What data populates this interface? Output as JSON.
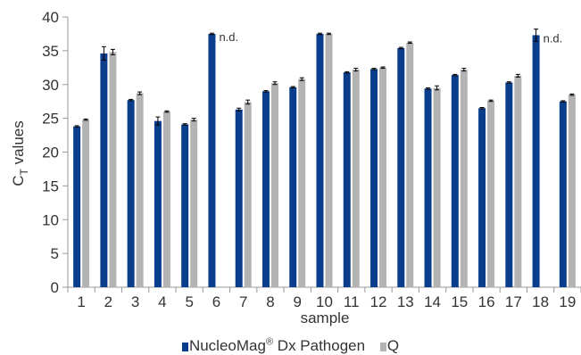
{
  "chart_data": {
    "type": "bar",
    "title": "",
    "xlabel": "sample",
    "ylabel": "C",
    "ylabel_subscript": "T",
    "ylabel_suffix": " values",
    "ylim": [
      0,
      40
    ],
    "yticks": [
      0,
      5,
      10,
      15,
      20,
      25,
      30,
      35,
      40
    ],
    "categories": [
      "1",
      "2",
      "3",
      "4",
      "5",
      "6",
      "7",
      "8",
      "9",
      "10",
      "11",
      "12",
      "13",
      "14",
      "15",
      "16",
      "17",
      "18",
      "19"
    ],
    "series": [
      {
        "name": "NucleoMag",
        "name_superscript": "®",
        "name_suffix": " Dx Pathogen",
        "color": "#0a3d8c",
        "values": [
          23.8,
          34.6,
          27.7,
          24.6,
          24.1,
          37.5,
          26.3,
          29.0,
          29.6,
          37.5,
          31.8,
          32.3,
          35.4,
          29.4,
          31.4,
          26.5,
          30.3,
          37.3,
          27.5
        ],
        "errors": [
          0.1,
          1.0,
          0.1,
          0.6,
          0.1,
          0.1,
          0.2,
          0.1,
          0.1,
          0.1,
          0.1,
          0.1,
          0.1,
          0.1,
          0.1,
          0.1,
          0.1,
          0.9,
          0.1
        ]
      },
      {
        "name": "Q",
        "color": "#b3b3b3",
        "values": [
          24.8,
          34.8,
          28.7,
          26.0,
          24.8,
          null,
          27.4,
          30.2,
          30.8,
          37.5,
          32.2,
          32.5,
          36.2,
          29.5,
          32.2,
          27.6,
          31.3,
          null,
          28.5
        ],
        "errors": [
          0.1,
          0.4,
          0.2,
          0.1,
          0.2,
          null,
          0.3,
          0.2,
          0.2,
          0.1,
          0.2,
          0.1,
          0.1,
          0.3,
          0.2,
          0.1,
          0.2,
          null,
          0.1
        ]
      }
    ],
    "annotations": [
      {
        "category": "6",
        "text": "n.d."
      },
      {
        "category": "18",
        "text": "n.d."
      }
    ],
    "grid": false,
    "legend_position": "bottom"
  }
}
